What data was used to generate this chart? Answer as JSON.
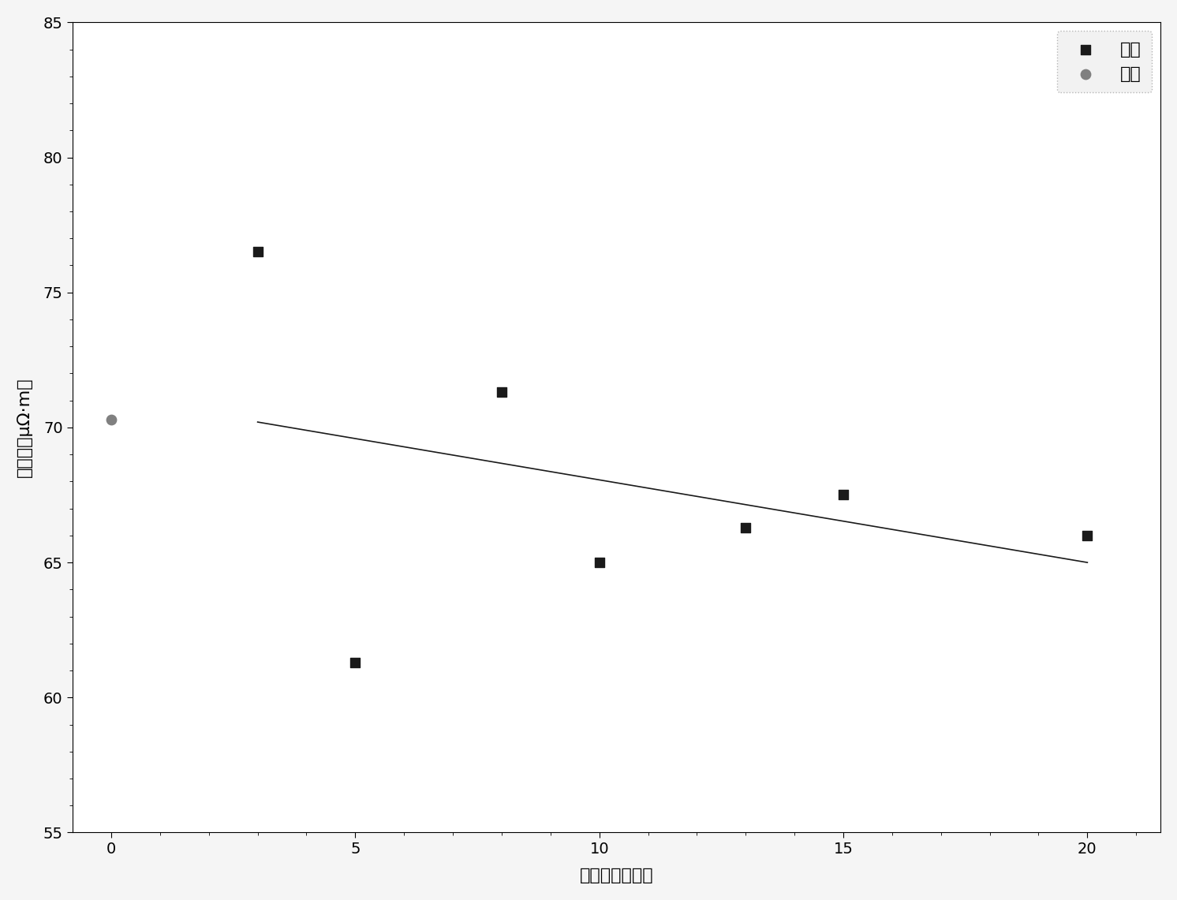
{
  "improved_x": [
    3,
    5,
    8,
    10,
    13,
    15,
    20
  ],
  "improved_y": [
    76.5,
    61.3,
    71.3,
    65.0,
    66.3,
    67.5,
    66.0
  ],
  "traditional_x": [
    0
  ],
  "traditional_y": [
    70.3
  ],
  "trendline_x": [
    3,
    20
  ],
  "trendline_y": [
    70.2,
    65.0
  ],
  "xlabel": "粉料含量（％）",
  "ylabel": "电阵率（μΩ·m）",
  "xlim": [
    -0.8,
    21.5
  ],
  "ylim": [
    55,
    85
  ],
  "xticks": [
    0,
    5,
    10,
    15,
    20
  ],
  "yticks": [
    55,
    60,
    65,
    70,
    75,
    80,
    85
  ],
  "legend_improved": "改进",
  "legend_traditional": "传统",
  "figure_facecolor": "#f5f5f5",
  "plot_facecolor": "#ffffff",
  "marker_improved_color": "#1a1a1a",
  "marker_traditional_color": "#808080",
  "trendline_color": "#1a1a1a",
  "marker_size_improved": 80,
  "marker_size_traditional": 80,
  "trendline_linewidth": 1.2,
  "figwidth": 14.92,
  "figheight": 11.41,
  "dpi": 100,
  "xlabel_fontsize": 16,
  "ylabel_fontsize": 16,
  "tick_fontsize": 14,
  "legend_fontsize": 16
}
